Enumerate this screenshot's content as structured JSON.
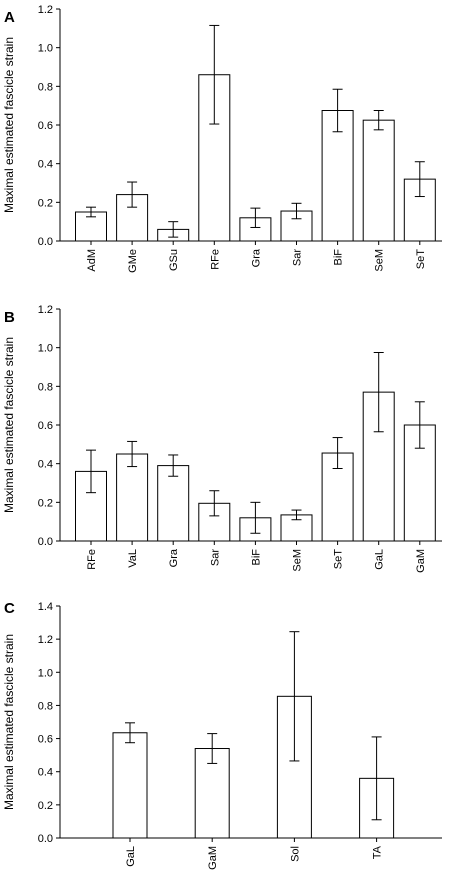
{
  "chart_data": [
    {
      "panel": "A",
      "type": "bar",
      "ylabel": "Maximal estimated fascicle strain",
      "ylim": [
        0,
        1.2
      ],
      "yticks": [
        "0.0",
        "0.2",
        "0.4",
        "0.6",
        "0.8",
        "1.0",
        "1.2"
      ],
      "categories": [
        "AdM",
        "GMe",
        "GSu",
        "RFe",
        "Gra",
        "Sar",
        "BiF",
        "SeM",
        "SeT"
      ],
      "values": [
        0.15,
        0.24,
        0.06,
        0.86,
        0.12,
        0.155,
        0.675,
        0.625,
        0.32
      ],
      "errors": [
        0.025,
        0.065,
        0.04,
        0.255,
        0.05,
        0.04,
        0.11,
        0.05,
        0.09
      ]
    },
    {
      "panel": "B",
      "type": "bar",
      "ylabel": "Maximal estimated fascicle strain",
      "ylim": [
        0,
        1.2
      ],
      "yticks": [
        "0.0",
        "0.2",
        "0.4",
        "0.6",
        "0.8",
        "1.0",
        "1.2"
      ],
      "categories": [
        "RFe",
        "VaL",
        "Gra",
        "Sar",
        "BiF",
        "SeM",
        "SeT",
        "GaL",
        "GaM"
      ],
      "values": [
        0.36,
        0.45,
        0.39,
        0.195,
        0.12,
        0.135,
        0.455,
        0.77,
        0.6
      ],
      "errors": [
        0.11,
        0.065,
        0.055,
        0.065,
        0.08,
        0.025,
        0.08,
        0.205,
        0.12
      ]
    },
    {
      "panel": "C",
      "type": "bar",
      "ylabel": "Maximal estimated fascicle strain",
      "ylim": [
        0,
        1.4
      ],
      "yticks": [
        "0.0",
        "0.2",
        "0.4",
        "0.6",
        "0.8",
        "1.0",
        "1.2",
        "1.4"
      ],
      "categories": [
        "GaL",
        "GaM",
        "Sol",
        "TA"
      ],
      "values": [
        0.635,
        0.54,
        0.855,
        0.36
      ],
      "errors": [
        0.06,
        0.09,
        0.39,
        0.25
      ]
    }
  ]
}
